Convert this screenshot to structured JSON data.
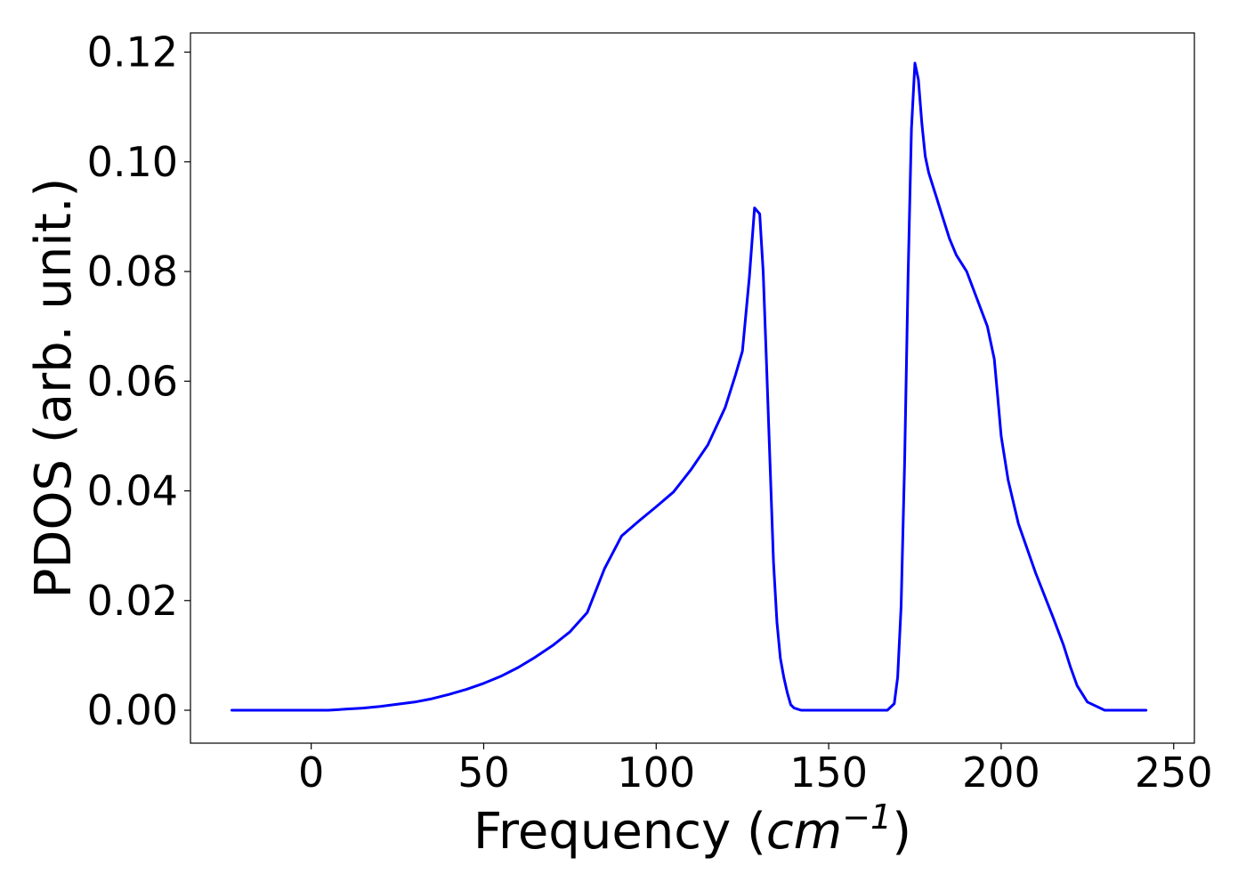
{
  "chart_data": {
    "type": "line",
    "title": "",
    "xlabel": "Frequency (cm^{-1})",
    "ylabel": "PDOS (arb. unit.)",
    "xlabel_parts": {
      "prefix": "Frequency (",
      "italic": "cm",
      "superscript": "−1",
      "suffix": ")"
    },
    "xlim": [
      -35,
      256
    ],
    "ylim": [
      -0.006,
      0.1235
    ],
    "xticks": [
      0,
      50,
      100,
      150,
      200,
      250
    ],
    "xtick_labels": [
      "0",
      "50",
      "100",
      "150",
      "200",
      "250"
    ],
    "yticks": [
      0.0,
      0.02,
      0.04,
      0.06,
      0.08,
      0.1,
      0.12
    ],
    "ytick_labels": [
      "0.00",
      "0.02",
      "0.04",
      "0.06",
      "0.08",
      "0.10",
      "0.12"
    ],
    "grid": false,
    "legend": "none",
    "series": [
      {
        "color": "#0000ff",
        "x": [
          -23,
          0,
          5,
          10,
          15,
          20,
          25,
          30,
          35,
          40,
          45,
          50,
          55,
          60,
          65,
          70,
          75,
          80,
          85,
          90,
          95,
          100,
          105,
          110,
          115,
          120,
          123,
          125,
          127,
          128.5,
          130,
          131,
          132,
          133,
          134,
          135,
          136,
          137,
          138,
          139,
          140,
          142,
          145,
          150,
          160,
          167,
          169,
          170,
          171,
          172,
          173,
          174,
          175,
          176,
          177,
          178,
          179,
          180,
          181,
          183,
          185,
          187,
          190,
          193,
          196,
          198,
          199,
          200,
          202,
          205,
          210,
          215,
          218,
          220,
          222,
          225,
          230,
          242
        ],
        "y": [
          0,
          0,
          0,
          0.0002,
          0.0004,
          0.0007,
          0.0011,
          0.0015,
          0.0021,
          0.0029,
          0.0038,
          0.0049,
          0.0062,
          0.0078,
          0.0097,
          0.0118,
          0.0143,
          0.0178,
          0.0258,
          0.0318,
          0.0345,
          0.0371,
          0.0398,
          0.0438,
          0.0484,
          0.0552,
          0.0612,
          0.0655,
          0.079,
          0.0916,
          0.0905,
          0.08,
          0.063,
          0.045,
          0.027,
          0.016,
          0.0095,
          0.006,
          0.0032,
          0.001,
          0.0004,
          0,
          0,
          0,
          0,
          0,
          0.0012,
          0.006,
          0.019,
          0.045,
          0.079,
          0.106,
          0.118,
          0.115,
          0.107,
          0.101,
          0.098,
          0.096,
          0.094,
          0.09,
          0.086,
          0.083,
          0.08,
          0.075,
          0.07,
          0.064,
          0.057,
          0.05,
          0.042,
          0.034,
          0.025,
          0.017,
          0.012,
          0.008,
          0.0045,
          0.0015,
          0,
          0
        ]
      }
    ]
  }
}
